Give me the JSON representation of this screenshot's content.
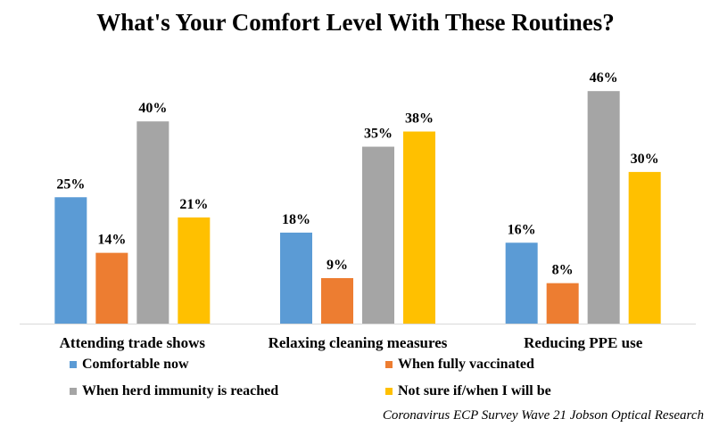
{
  "chart_data": {
    "type": "bar",
    "title": "What's Your Comfort Level With These Routines?",
    "categories": [
      "Attending trade shows",
      "Relaxing cleaning measures",
      "Reducing PPE use"
    ],
    "series": [
      {
        "name": "Comfortable now",
        "color": "#5B9BD5",
        "values": [
          25,
          18,
          16
        ]
      },
      {
        "name": "When fully vaccinated",
        "color": "#ED7D31",
        "values": [
          14,
          9,
          8
        ]
      },
      {
        "name": "When herd immunity is reached",
        "color": "#A5A5A5",
        "values": [
          40,
          35,
          46
        ]
      },
      {
        "name": "Not sure if/when I will be",
        "color": "#FFC000",
        "values": [
          21,
          38,
          30
        ]
      }
    ],
    "value_suffix": "%",
    "ylim": [
      0,
      50
    ],
    "grid": false,
    "legend_position": "bottom",
    "source": "Coronavirus ECP Survey Wave 21 Jobson Optical Research"
  }
}
